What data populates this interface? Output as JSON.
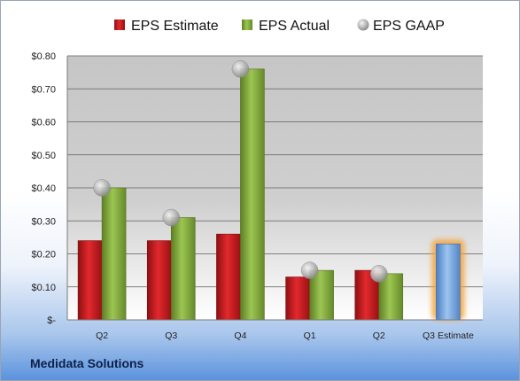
{
  "chart_data": {
    "type": "bar",
    "categories": [
      "Q2",
      "Q3",
      "Q4",
      "Q1",
      "Q2",
      "Q3 Estimate"
    ],
    "series": [
      {
        "name": "EPS Estimate",
        "type": "bar",
        "color": "#c0181c",
        "values": [
          0.24,
          0.24,
          0.26,
          0.13,
          0.15,
          null
        ]
      },
      {
        "name": "EPS Actual",
        "type": "bar",
        "color": "#7fa83a",
        "values": [
          0.4,
          0.31,
          0.76,
          0.15,
          0.14,
          null
        ]
      },
      {
        "name": "EPS GAAP",
        "type": "marker",
        "color": "#a8a8a8",
        "values": [
          0.4,
          0.31,
          0.76,
          0.15,
          0.14,
          null
        ]
      },
      {
        "name": "",
        "type": "bar",
        "color": "#6fa2dc",
        "highlight": "#f2a33a",
        "values": [
          null,
          null,
          null,
          null,
          null,
          0.23
        ]
      }
    ],
    "ylim": [
      0,
      0.8
    ],
    "yticks": [
      0,
      0.1,
      0.2,
      0.3,
      0.4,
      0.5,
      0.6,
      0.7,
      0.8
    ],
    "ytick_labels": [
      "$-",
      "$0.10",
      "$0.20",
      "$0.30",
      "$0.40",
      "$0.50",
      "$0.60",
      "$0.70",
      "$0.80"
    ],
    "grid": true,
    "legend_position": "top"
  },
  "company": "Medidata Solutions"
}
